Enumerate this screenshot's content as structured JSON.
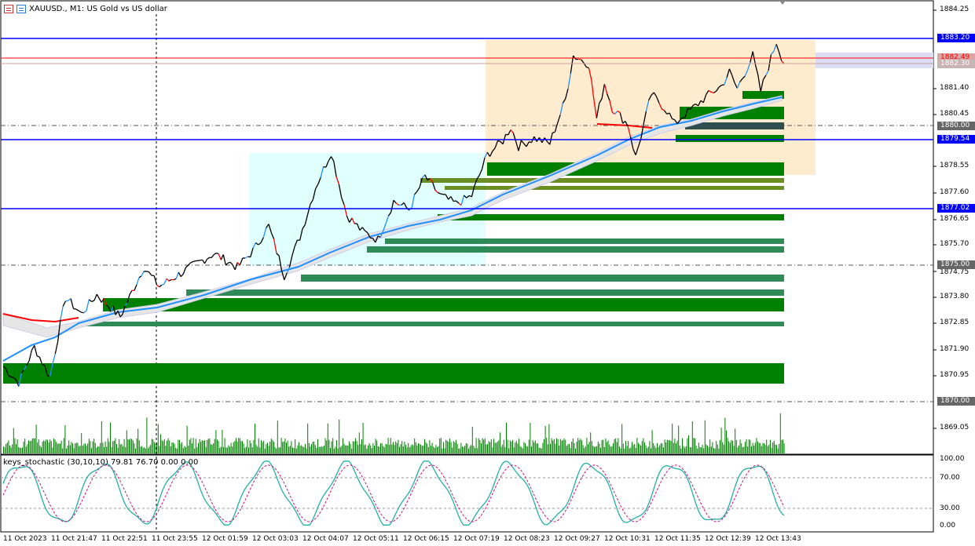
{
  "header": {
    "chart_menu_icon": "chart-menu-icon",
    "symbol_icon": "symbol-icon",
    "title": "XAUUSD., M1:  US Gold vs US dollar"
  },
  "price_axis": [
    "1884.25",
    "1881.40",
    "1880.45",
    "1878.55",
    "1877.60",
    "1876.65",
    "1875.70",
    "1874.75",
    "1873.80",
    "1872.85",
    "1871.90",
    "1870.95",
    "1869.05"
  ],
  "price_tags": {
    "level_1883": "1883.20",
    "level_1882_49": "1882.49",
    "level_1882_30": "1882.30",
    "level_1880": "1880.00",
    "level_1879_54": "1879.54",
    "level_1877_02": "1877.02",
    "level_1875": "1875.00",
    "level_1870": "1870.00"
  },
  "time_axis": [
    "11 Oct 2023",
    "11 Oct 21:47",
    "11 Oct 22:51",
    "11 Oct 23:55",
    "12 Oct 01:59",
    "12 Oct 03:03",
    "12 Oct 04:07",
    "12 Oct 05:11",
    "12 Oct 06:15",
    "12 Oct 07:19",
    "12 Oct 08:23",
    "12 Oct 09:27",
    "12 Oct 10:31",
    "12 Oct 11:35",
    "12 Oct 12:39",
    "12 Oct 13:43"
  ],
  "indicator": {
    "label": "keys_stochastic (30,10,10) 79.81 76.70 0.00 0.00",
    "axis": [
      "100.00",
      "70.00",
      "30.00",
      "0.00"
    ]
  },
  "colors": {
    "blue_level": "#0000ff",
    "red_level": "#ff0000",
    "bid_tag": "#d9a6a6",
    "green_zone": "#008000",
    "dark_green_zone": "#2e8b57",
    "olive_zone": "#6b8e23",
    "cyan_box": "#e0ffff",
    "orange_box": "#ffebcd",
    "ma_blue": "#1e90ff",
    "ma_red": "#ff0000",
    "volume": "#008000",
    "stoch_main": "#20b2aa",
    "stoch_signal": "#c71585"
  },
  "chart_data": {
    "type": "candlestick",
    "symbol": "XAUUSD.",
    "timeframe": "M1",
    "ylim": [
      1869.0,
      1884.5
    ],
    "horizontal_levels": [
      1883.2,
      1882.49,
      1882.3,
      1880.0,
      1879.54,
      1877.02,
      1875.0,
      1870.0
    ],
    "x_ticks": [
      "11 Oct 2023",
      "11 Oct 21:47",
      "11 Oct 22:51",
      "11 Oct 23:55",
      "12 Oct 01:59",
      "12 Oct 03:03",
      "12 Oct 04:07",
      "12 Oct 05:11",
      "12 Oct 06:15",
      "12 Oct 07:19",
      "12 Oct 08:23",
      "12 Oct 09:27",
      "12 Oct 10:31",
      "12 Oct 11:35",
      "12 Oct 12:39",
      "12 Oct 13:43"
    ],
    "price_path": [
      [
        0,
        1871.3
      ],
      [
        0.02,
        1870.7
      ],
      [
        0.04,
        1872.0
      ],
      [
        0.06,
        1870.9
      ],
      [
        0.08,
        1873.8
      ],
      [
        0.1,
        1873.2
      ],
      [
        0.12,
        1873.9
      ],
      [
        0.15,
        1873.1
      ],
      [
        0.18,
        1874.9
      ],
      [
        0.2,
        1874.2
      ],
      [
        0.24,
        1874.9
      ],
      [
        0.27,
        1875.4
      ],
      [
        0.3,
        1874.9
      ],
      [
        0.32,
        1875.5
      ],
      [
        0.34,
        1876.4
      ],
      [
        0.36,
        1874.6
      ],
      [
        0.38,
        1876.0
      ],
      [
        0.4,
        1877.8
      ],
      [
        0.42,
        1879.1
      ],
      [
        0.44,
        1876.8
      ],
      [
        0.46,
        1876.2
      ],
      [
        0.48,
        1875.9
      ],
      [
        0.5,
        1877.3
      ],
      [
        0.52,
        1877.0
      ],
      [
        0.54,
        1878.2
      ],
      [
        0.56,
        1877.5
      ],
      [
        0.58,
        1877.2
      ],
      [
        0.6,
        1877.5
      ],
      [
        0.62,
        1879.0
      ],
      [
        0.64,
        1879.5
      ],
      [
        0.65,
        1880.0
      ],
      [
        0.66,
        1879.3
      ],
      [
        0.68,
        1879.6
      ],
      [
        0.7,
        1879.4
      ],
      [
        0.72,
        1881.0
      ],
      [
        0.73,
        1882.6
      ],
      [
        0.75,
        1882.3
      ],
      [
        0.76,
        1880.3
      ],
      [
        0.77,
        1881.6
      ],
      [
        0.78,
        1880.7
      ],
      [
        0.8,
        1880.1
      ],
      [
        0.81,
        1878.9
      ],
      [
        0.83,
        1881.2
      ],
      [
        0.85,
        1880.6
      ],
      [
        0.86,
        1880.1
      ],
      [
        0.87,
        1880.4
      ],
      [
        0.88,
        1880.6
      ],
      [
        0.9,
        1881.1
      ],
      [
        0.92,
        1881.5
      ],
      [
        0.93,
        1882.0
      ],
      [
        0.94,
        1881.4
      ],
      [
        0.96,
        1882.6
      ],
      [
        0.97,
        1881.3
      ],
      [
        0.98,
        1882.2
      ],
      [
        0.99,
        1883.1
      ],
      [
        1.0,
        1882.3
      ]
    ],
    "stochastic_ylim": [
      0,
      100
    ],
    "stochastic_levels": [
      70,
      30
    ]
  }
}
